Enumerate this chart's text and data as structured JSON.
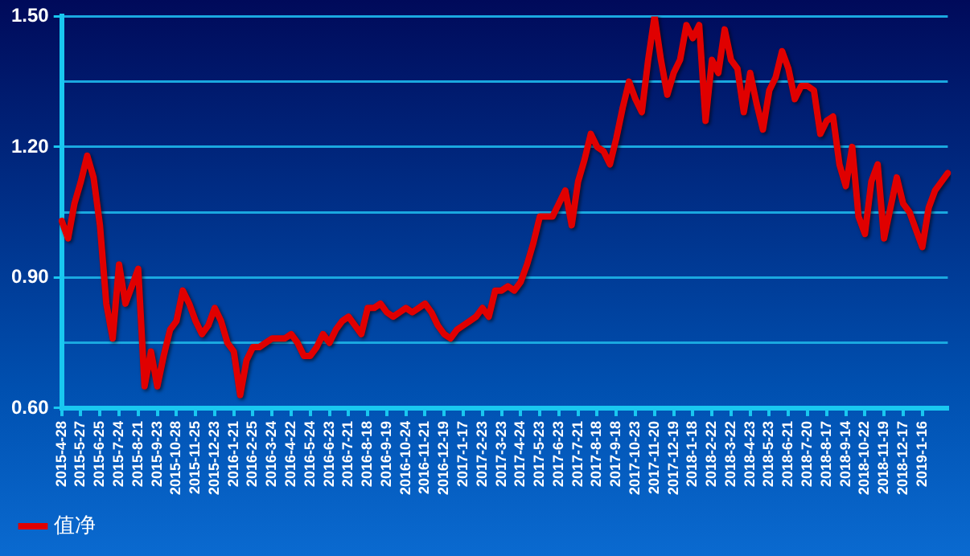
{
  "chart_data": {
    "type": "line",
    "categories": [
      "2015-4-28",
      null,
      null,
      "2015-5-27",
      null,
      null,
      "2015-6-25",
      null,
      null,
      "2015-7-24",
      null,
      null,
      "2015-8-21",
      null,
      null,
      "2015-9-23",
      null,
      null,
      "2015-10-28",
      null,
      null,
      "2015-11-25",
      null,
      null,
      "2015-12-23",
      null,
      null,
      "2016-1-21",
      null,
      null,
      "2016-2-25",
      null,
      null,
      "2016-3-24",
      null,
      null,
      "2016-4-22",
      null,
      null,
      "2016-5-24",
      null,
      null,
      "2016-6-23",
      null,
      null,
      "2016-7-21",
      null,
      null,
      "2016-8-18",
      null,
      null,
      "2016-9-19",
      null,
      null,
      "2016-10-24",
      null,
      null,
      "2016-11-21",
      null,
      null,
      "2016-12-19",
      null,
      null,
      "2017-1-17",
      null,
      null,
      "2017-2-23",
      null,
      null,
      "2017-3-23",
      null,
      null,
      "2017-4-24",
      null,
      null,
      "2017-5-23",
      null,
      null,
      "2017-6-23",
      null,
      null,
      "2017-7-21",
      null,
      null,
      "2017-8-18",
      null,
      null,
      "2017-9-18",
      null,
      null,
      "2017-10-23",
      null,
      null,
      "2017-11-20",
      null,
      null,
      "2017-12-19",
      null,
      null,
      "2018-1-18",
      null,
      null,
      "2018-2-22",
      null,
      null,
      "2018-3-22",
      null,
      null,
      "2018-4-23",
      null,
      null,
      "2018-5-23",
      null,
      null,
      "2018-6-21",
      null,
      null,
      "2018-7-20",
      null,
      null,
      "2018-8-17",
      null,
      null,
      "2018-9-14",
      null,
      null,
      "2018-10-22",
      null,
      null,
      "2018-11-19",
      null,
      null,
      "2018-12-17",
      null,
      null,
      "2019-1-16",
      null,
      null,
      null,
      null
    ],
    "series": [
      {
        "name": "值净",
        "color": "#e00000",
        "values": [
          1.03,
          0.99,
          1.07,
          1.12,
          1.18,
          1.13,
          1.02,
          0.84,
          0.76,
          0.93,
          0.84,
          0.88,
          0.92,
          0.65,
          0.73,
          0.65,
          0.72,
          0.78,
          0.8,
          0.87,
          0.84,
          0.8,
          0.77,
          0.79,
          0.83,
          0.8,
          0.75,
          0.73,
          0.63,
          0.71,
          0.74,
          0.74,
          0.75,
          0.76,
          0.76,
          0.76,
          0.77,
          0.75,
          0.72,
          0.72,
          0.74,
          0.77,
          0.75,
          0.78,
          0.8,
          0.81,
          0.79,
          0.77,
          0.83,
          0.83,
          0.84,
          0.82,
          0.81,
          0.82,
          0.83,
          0.82,
          0.83,
          0.84,
          0.82,
          0.79,
          0.77,
          0.76,
          0.78,
          0.79,
          0.8,
          0.81,
          0.83,
          0.81,
          0.87,
          0.87,
          0.88,
          0.87,
          0.89,
          0.93,
          0.98,
          1.04,
          1.04,
          1.04,
          1.07,
          1.1,
          1.02,
          1.12,
          1.17,
          1.23,
          1.2,
          1.19,
          1.16,
          1.22,
          1.29,
          1.35,
          1.31,
          1.28,
          1.4,
          1.5,
          1.4,
          1.32,
          1.37,
          1.4,
          1.48,
          1.45,
          1.48,
          1.26,
          1.4,
          1.37,
          1.47,
          1.4,
          1.38,
          1.28,
          1.37,
          1.3,
          1.24,
          1.33,
          1.36,
          1.42,
          1.38,
          1.31,
          1.34,
          1.34,
          1.33,
          1.23,
          1.26,
          1.27,
          1.16,
          1.11,
          1.2,
          1.04,
          1.0,
          1.12,
          1.16,
          0.99,
          1.06,
          1.13,
          1.07,
          1.05,
          1.01,
          0.97,
          1.06,
          1.1,
          1.12,
          1.14
        ]
      }
    ],
    "ylim": [
      0.6,
      1.5
    ],
    "yticks": [
      {
        "value": 0.6,
        "label": "0.60"
      },
      {
        "value": 0.75,
        "label": null
      },
      {
        "value": 0.9,
        "label": "0.90"
      },
      {
        "value": 1.05,
        "label": null
      },
      {
        "value": 1.2,
        "label": "1.20"
      },
      {
        "value": 1.35,
        "label": null
      },
      {
        "value": 1.5,
        "label": "1.50"
      }
    ],
    "grid": "y",
    "legend": "bottom left",
    "marker": "none",
    "line_style": "solid"
  }
}
